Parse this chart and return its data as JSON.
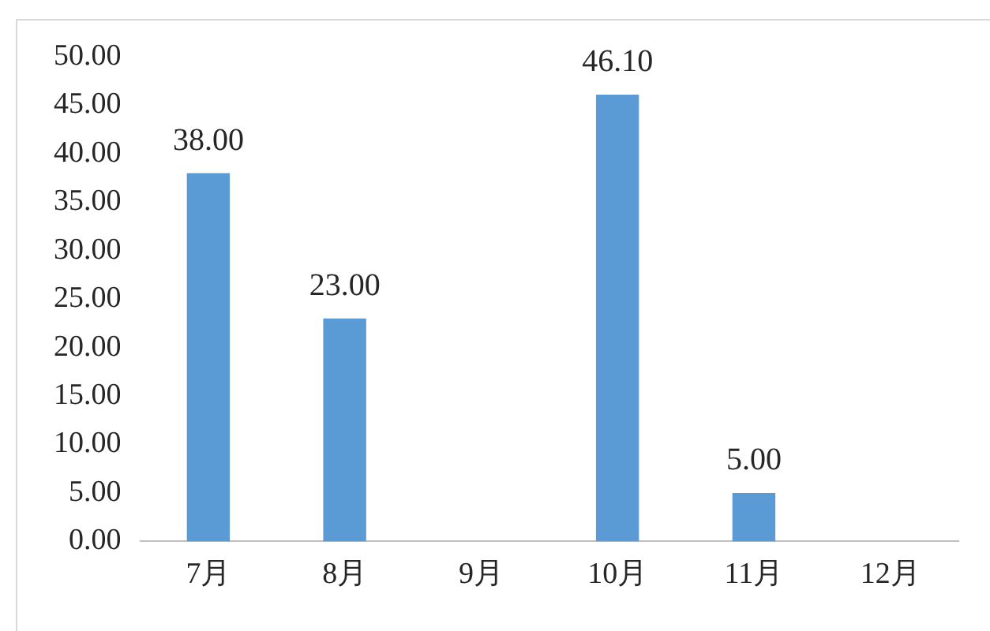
{
  "chart_data": {
    "type": "bar",
    "categories": [
      "7月",
      "8月",
      "9月",
      "10月",
      "11月",
      "12月"
    ],
    "values": [
      38,
      23,
      null,
      46.1,
      5,
      null
    ],
    "value_labels": [
      "38.00",
      "23.00",
      null,
      "46.10",
      "5.00",
      null
    ],
    "color": "#5b9bd5",
    "ylim": [
      0,
      50
    ],
    "yticks": [
      {
        "value": 0,
        "label": "0.00"
      },
      {
        "value": 5,
        "label": "5.00"
      },
      {
        "value": 10,
        "label": "10.00"
      },
      {
        "value": 15,
        "label": "15.00"
      },
      {
        "value": 20,
        "label": "20.00"
      },
      {
        "value": 25,
        "label": "25.00"
      },
      {
        "value": 30,
        "label": "30.00"
      },
      {
        "value": 35,
        "label": "35.00"
      },
      {
        "value": 40,
        "label": "40.00"
      },
      {
        "value": 45,
        "label": "45.00"
      },
      {
        "value": 50,
        "label": "50.00"
      }
    ],
    "grid": false,
    "legend": false
  }
}
